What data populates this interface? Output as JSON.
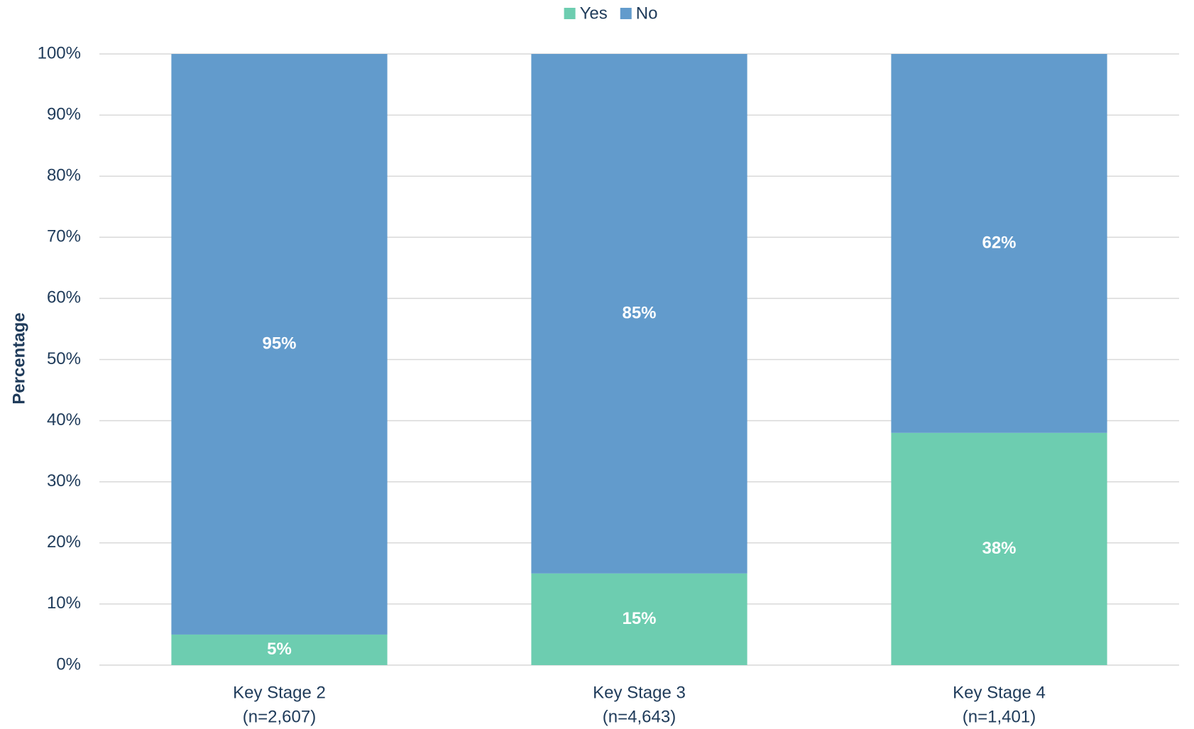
{
  "chart_data": {
    "type": "stacked_bar",
    "y_label": "Percentage",
    "categories": [
      [
        "Key Stage 2",
        "(n=2,607)"
      ],
      [
        "Key Stage 3",
        "(n=4,643)"
      ],
      [
        "Key Stage 4",
        "(n=1,401)"
      ]
    ],
    "series": [
      {
        "name": "Yes",
        "color": "#6dcdb0",
        "values": [
          5,
          15,
          38
        ],
        "value_labels": [
          "5%",
          "15%",
          "38%"
        ]
      },
      {
        "name": "No",
        "color": "#629bcc",
        "values": [
          95,
          85,
          62
        ],
        "value_labels": [
          "95%",
          "85%",
          "62%"
        ]
      }
    ],
    "ylim": [
      0,
      100
    ],
    "yticks": [
      {
        "value": 0,
        "label": "0%"
      },
      {
        "value": 10,
        "label": "10%"
      },
      {
        "value": 20,
        "label": "20%"
      },
      {
        "value": 30,
        "label": "30%"
      },
      {
        "value": 40,
        "label": "40%"
      },
      {
        "value": 50,
        "label": "50%"
      },
      {
        "value": 60,
        "label": "60%"
      },
      {
        "value": 70,
        "label": "70%"
      },
      {
        "value": 80,
        "label": "80%"
      },
      {
        "value": 90,
        "label": "90%"
      },
      {
        "value": 100,
        "label": "100%"
      }
    ],
    "grid": true,
    "legend": "top"
  }
}
